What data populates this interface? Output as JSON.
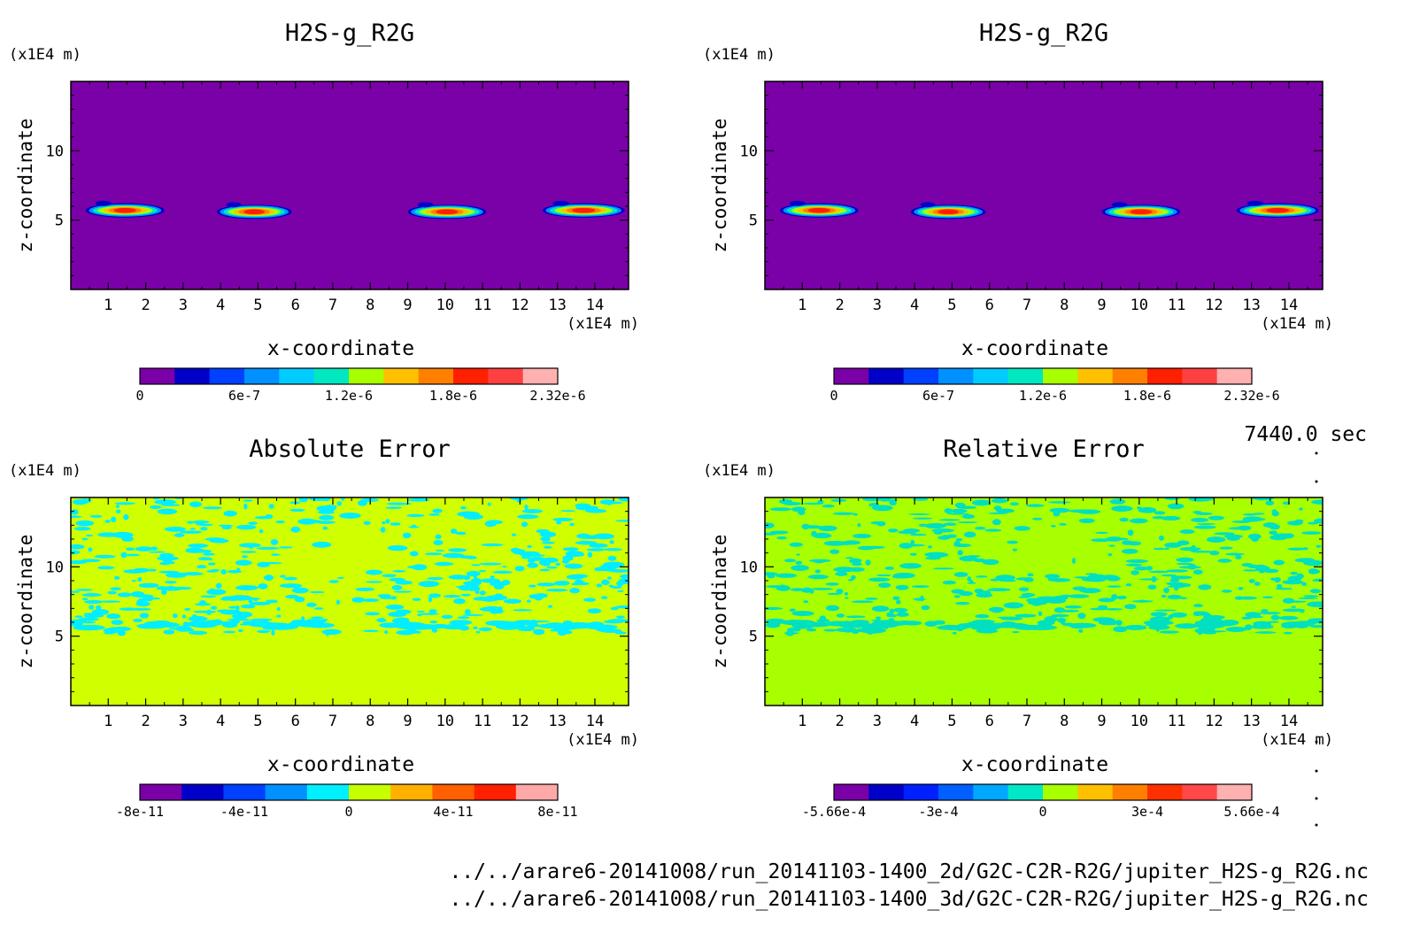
{
  "time_label": "7440.0 sec",
  "file_paths": [
    "../../arare6-20141008/run_20141103-1400_2d/G2C-C2R-R2G/jupiter_H2S-g_R2G.nc",
    "../../arare6-20141008/run_20141103-1400_3d/G2C-C2R-R2G/jupiter_H2S-g_R2G.nc"
  ],
  "chart_data": [
    {
      "type": "heatmap",
      "title": "H2S-g_R2G",
      "xlabel": "x-coordinate",
      "ylabel": "z-coordinate",
      "x_unit": "(x1E4 m)",
      "y_unit": "(x1E4 m)",
      "xlim": [
        0,
        14.9
      ],
      "ylim": [
        0,
        15
      ],
      "x_ticks": [
        1,
        2,
        3,
        4,
        5,
        6,
        7,
        8,
        9,
        10,
        11,
        12,
        13,
        14
      ],
      "y_ticks": [
        5,
        10
      ],
      "background_color": "#7a00a8",
      "features": [
        {
          "x_range": [
            0.4,
            2.5
          ],
          "z": 5.7,
          "peak": 2.32e-06
        },
        {
          "x_range": [
            3.9,
            5.9
          ],
          "z": 5.6,
          "peak": 2e-06
        },
        {
          "x_range": [
            9.0,
            11.1
          ],
          "z": 5.6,
          "peak": 2e-06
        },
        {
          "x_range": [
            12.6,
            14.8
          ],
          "z": 5.7,
          "peak": 2.32e-06
        }
      ],
      "colorbar": {
        "colors": [
          "#7a00a8",
          "#0000c8",
          "#0040ff",
          "#0090ff",
          "#00ccff",
          "#00e8c0",
          "#a8ff00",
          "#ffc000",
          "#ff8000",
          "#ff2000",
          "#ff4040",
          "#ffb0b0"
        ],
        "labels": [
          "0",
          "6e-7",
          "1.2e-6",
          "1.8e-6",
          "2.32e-6"
        ],
        "range": [
          0,
          2.32e-06
        ]
      }
    },
    {
      "type": "heatmap",
      "title": "H2S-g_R2G",
      "xlabel": "x-coordinate",
      "ylabel": "z-coordinate",
      "x_unit": "(x1E4 m)",
      "y_unit": "(x1E4 m)",
      "xlim": [
        0,
        14.9
      ],
      "ylim": [
        0,
        15
      ],
      "x_ticks": [
        1,
        2,
        3,
        4,
        5,
        6,
        7,
        8,
        9,
        10,
        11,
        12,
        13,
        14
      ],
      "y_ticks": [
        5,
        10
      ],
      "background_color": "#7a00a8",
      "features": [
        {
          "x_range": [
            0.4,
            2.5
          ],
          "z": 5.7,
          "peak": 2.32e-06
        },
        {
          "x_range": [
            3.9,
            5.9
          ],
          "z": 5.6,
          "peak": 2e-06
        },
        {
          "x_range": [
            9.0,
            11.1
          ],
          "z": 5.6,
          "peak": 2e-06
        },
        {
          "x_range": [
            12.6,
            14.8
          ],
          "z": 5.7,
          "peak": 2.32e-06
        }
      ],
      "colorbar": {
        "colors": [
          "#7a00a8",
          "#0000c8",
          "#0040ff",
          "#0090ff",
          "#00ccff",
          "#00e8c0",
          "#a8ff00",
          "#ffc000",
          "#ff8000",
          "#ff2000",
          "#ff4040",
          "#ffb0b0"
        ],
        "labels": [
          "0",
          "6e-7",
          "1.2e-6",
          "1.8e-6",
          "2.32e-6"
        ],
        "range": [
          0,
          2.32e-06
        ]
      }
    },
    {
      "type": "heatmap",
      "title": "Absolute Error",
      "xlabel": "x-coordinate",
      "ylabel": "z-coordinate",
      "x_unit": "(x1E4 m)",
      "y_unit": "(x1E4 m)",
      "xlim": [
        0,
        14.9
      ],
      "ylim": [
        0,
        15
      ],
      "x_ticks": [
        1,
        2,
        3,
        4,
        5,
        6,
        7,
        8,
        9,
        10,
        11,
        12,
        13,
        14
      ],
      "y_ticks": [
        5,
        10
      ],
      "background_color": "#d0ff00",
      "noise_color": "#00eeff",
      "noise_z_range": [
        5.2,
        15
      ],
      "colorbar": {
        "colors": [
          "#7a00a8",
          "#0000c8",
          "#0040ff",
          "#0090ff",
          "#00f0ff",
          "#c8ff00",
          "#ffb000",
          "#ff6000",
          "#ff2000",
          "#ffa8a8"
        ],
        "labels": [
          "-8e-11",
          "-4e-11",
          "0",
          "4e-11",
          "8e-11"
        ],
        "range": [
          -1e-10,
          1e-10
        ]
      }
    },
    {
      "type": "heatmap",
      "title": "Relative Error",
      "xlabel": "x-coordinate",
      "ylabel": "z-coordinate",
      "x_unit": "(x1E4 m)",
      "y_unit": "(x1E4 m)",
      "xlim": [
        0,
        14.9
      ],
      "ylim": [
        0,
        15
      ],
      "x_ticks": [
        1,
        2,
        3,
        4,
        5,
        6,
        7,
        8,
        9,
        10,
        11,
        12,
        13,
        14
      ],
      "y_ticks": [
        5,
        10
      ],
      "background_color": "#a8ff00",
      "noise_color": "#00e0c0",
      "noise_z_range": [
        5.2,
        15
      ],
      "colorbar": {
        "colors": [
          "#7a00a8",
          "#0000c8",
          "#0020ff",
          "#0060ff",
          "#00a8ff",
          "#00e8c8",
          "#a8ff00",
          "#ffc000",
          "#ff8000",
          "#ff3000",
          "#ff4848",
          "#ffb0b0"
        ],
        "labels": [
          "-5.66e-4",
          "-3e-4",
          "0",
          "3e-4",
          "5.66e-4"
        ],
        "range": [
          -0.000566,
          0.000566
        ]
      }
    }
  ]
}
